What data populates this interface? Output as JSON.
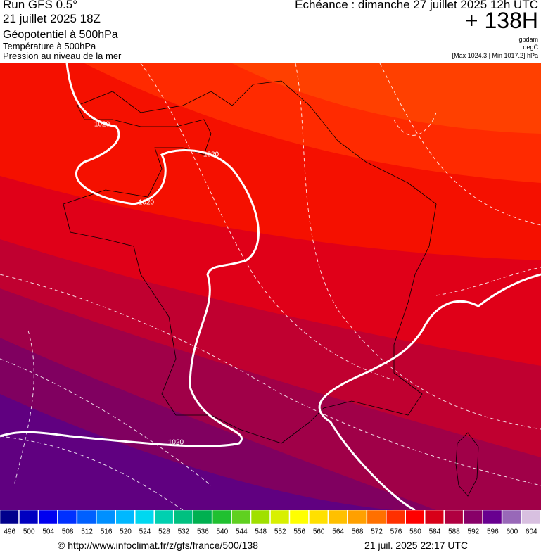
{
  "header": {
    "run": "Run GFS 0.5°",
    "run_date": "21 juillet 2025 18Z",
    "field_main": "Géopotentiel à 500hPa",
    "field_temp": "Température à 500hPa",
    "field_pressure": "Pression au niveau de la mer",
    "valid_time": "Echéance : dimanche 27 juillet 2025 12h UTC",
    "lead": "+ 138H",
    "unit_geo": "gpdam",
    "unit_temp": "degC",
    "pressure_range": "[Max 1024.3 | Min 1017.2] hPa"
  },
  "map": {
    "isobar_labels": [
      "1020",
      "1020",
      "1020",
      "1020"
    ]
  },
  "legend": {
    "levels": [
      496,
      500,
      504,
      508,
      512,
      516,
      520,
      524,
      528,
      532,
      536,
      540,
      544,
      548,
      552,
      556,
      560,
      564,
      568,
      572,
      576,
      580,
      584,
      588,
      592,
      596,
      600,
      604
    ],
    "colors": [
      "#00008c",
      "#0000c0",
      "#0000f0",
      "#0030ff",
      "#0060ff",
      "#0090ff",
      "#00b8ff",
      "#00d8f0",
      "#00d0b0",
      "#00c080",
      "#00b050",
      "#20c030",
      "#60d020",
      "#a0e000",
      "#d8f000",
      "#ffff00",
      "#ffe000",
      "#ffc000",
      "#ffa000",
      "#ff7000",
      "#ff3000",
      "#ff0000",
      "#d80018",
      "#b00040",
      "#880068",
      "#680090",
      "#9868b8",
      "#d8c0e0"
    ]
  },
  "footer": {
    "url": "© http://www.infoclimat.fr/z/gfs/france/500/138",
    "timestamp": "21 juil. 2025 22:17 UTC"
  }
}
